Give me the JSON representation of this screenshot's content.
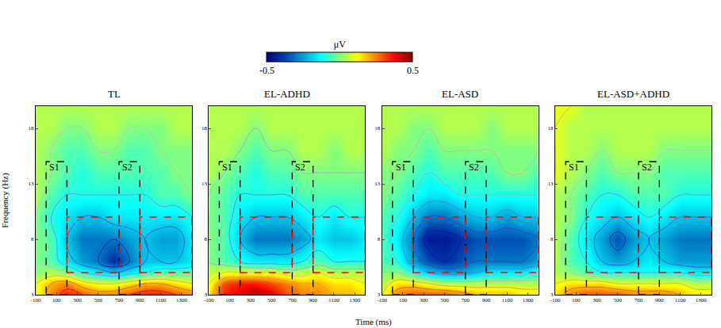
{
  "chart_data": {
    "type": "heatmap",
    "xlabel": "Time (ms)",
    "ylabel": "Frequency (Hz)",
    "xlim": [
      -100,
      1400
    ],
    "ylim": [
      3,
      20
    ],
    "xticks": [
      -100,
      100,
      300,
      500,
      700,
      900,
      1100,
      1300
    ],
    "yticks": [
      3,
      8,
      13,
      18
    ],
    "grid": false,
    "colorbar": {
      "title": "μV",
      "range": [
        -0.5,
        0.5
      ],
      "ticks": [
        -0.5,
        0.5
      ]
    },
    "x": [
      -100,
      50,
      200,
      350,
      500,
      650,
      800,
      950,
      1100,
      1250,
      1400
    ],
    "y": [
      3,
      4,
      5,
      6,
      8,
      10,
      12,
      14,
      16,
      18,
      20
    ],
    "panels": [
      {
        "title": "TL",
        "z": [
          [
            0.1,
            0.25,
            0.35,
            0.3,
            0.25,
            0.25,
            0.3,
            0.35,
            0.35,
            0.3,
            0.25
          ],
          [
            0.1,
            0.2,
            0.25,
            0.15,
            0.1,
            0.1,
            0.15,
            0.2,
            0.2,
            0.15,
            0.1
          ],
          [
            0.0,
            0.05,
            0.0,
            -0.1,
            -0.15,
            -0.2,
            -0.15,
            -0.1,
            -0.05,
            -0.05,
            -0.05
          ],
          [
            0.0,
            -0.05,
            -0.15,
            -0.25,
            -0.3,
            -0.4,
            -0.3,
            -0.2,
            -0.2,
            -0.2,
            -0.15
          ],
          [
            0.0,
            -0.05,
            -0.2,
            -0.3,
            -0.3,
            -0.3,
            -0.25,
            -0.2,
            -0.25,
            -0.25,
            -0.15
          ],
          [
            0.0,
            -0.1,
            -0.15,
            -0.2,
            -0.2,
            -0.15,
            -0.15,
            -0.15,
            -0.15,
            -0.15,
            -0.1
          ],
          [
            0.05,
            -0.05,
            -0.1,
            -0.1,
            -0.1,
            -0.1,
            -0.1,
            -0.1,
            -0.05,
            -0.05,
            0.0
          ],
          [
            0.05,
            0.0,
            -0.05,
            -0.1,
            -0.05,
            -0.05,
            -0.05,
            -0.05,
            -0.05,
            0.0,
            0.0
          ],
          [
            0.05,
            0.0,
            -0.05,
            -0.05,
            0.0,
            0.0,
            -0.05,
            -0.05,
            0.0,
            0.0,
            0.0
          ],
          [
            0.05,
            0.05,
            0.0,
            0.0,
            0.05,
            0.05,
            0.0,
            0.0,
            0.0,
            0.05,
            0.05
          ],
          [
            0.05,
            0.05,
            0.05,
            0.05,
            0.05,
            0.05,
            0.05,
            0.05,
            0.05,
            0.05,
            0.05
          ]
        ],
        "windows": [
          {
            "label": "S1",
            "x": [
              0,
              200
            ],
            "y": [
              3,
              15
            ],
            "color": "black"
          },
          {
            "label": "S2",
            "x": [
              700,
              900
            ],
            "y": [
              3,
              15
            ],
            "color": "black"
          },
          {
            "x": [
              200,
              700
            ],
            "y": [
              5,
              10
            ],
            "color": "red"
          },
          {
            "x": [
              900,
              1400
            ],
            "y": [
              5,
              10
            ],
            "color": "red"
          }
        ]
      },
      {
        "title": "EL-ADHD",
        "z": [
          [
            0.15,
            0.35,
            0.4,
            0.45,
            0.4,
            0.3,
            0.25,
            0.25,
            0.2,
            0.2,
            0.15
          ],
          [
            0.1,
            0.3,
            0.35,
            0.35,
            0.3,
            0.25,
            0.2,
            0.2,
            0.15,
            0.15,
            0.1
          ],
          [
            0.05,
            0.1,
            0.1,
            0.1,
            0.1,
            0.05,
            0.05,
            0.1,
            0.05,
            0.05,
            0.05
          ],
          [
            0.0,
            -0.05,
            -0.1,
            -0.15,
            -0.15,
            -0.15,
            -0.1,
            -0.05,
            -0.1,
            -0.1,
            -0.1
          ],
          [
            0.0,
            -0.05,
            -0.2,
            -0.3,
            -0.3,
            -0.3,
            -0.25,
            -0.15,
            -0.2,
            -0.2,
            -0.15
          ],
          [
            0.0,
            -0.05,
            -0.15,
            -0.2,
            -0.2,
            -0.2,
            -0.15,
            -0.1,
            -0.15,
            -0.1,
            -0.1
          ],
          [
            0.0,
            -0.05,
            -0.1,
            -0.1,
            -0.1,
            -0.1,
            -0.05,
            -0.05,
            -0.05,
            -0.05,
            -0.05
          ],
          [
            0.05,
            0.0,
            -0.05,
            -0.1,
            -0.05,
            -0.05,
            0.0,
            0.0,
            0.0,
            0.0,
            0.0
          ],
          [
            0.05,
            0.05,
            0.0,
            -0.05,
            0.0,
            0.0,
            0.05,
            0.05,
            0.0,
            0.05,
            0.05
          ],
          [
            0.05,
            0.05,
            0.05,
            0.0,
            0.05,
            0.05,
            0.05,
            0.05,
            0.05,
            0.05,
            0.05
          ],
          [
            0.05,
            0.05,
            0.05,
            0.05,
            0.05,
            0.05,
            0.05,
            0.05,
            0.05,
            0.05,
            0.05
          ]
        ],
        "windows": [
          {
            "label": "S1",
            "x": [
              0,
              200
            ],
            "y": [
              3,
              15
            ],
            "color": "black"
          },
          {
            "label": "S2",
            "x": [
              700,
              900
            ],
            "y": [
              3,
              15
            ],
            "color": "black"
          },
          {
            "x": [
              200,
              700
            ],
            "y": [
              5,
              10
            ],
            "color": "red"
          },
          {
            "x": [
              900,
              1400
            ],
            "y": [
              5,
              10
            ],
            "color": "red"
          }
        ]
      },
      {
        "title": "EL-ASD",
        "z": [
          [
            0.1,
            0.25,
            0.3,
            0.3,
            0.3,
            0.25,
            0.2,
            0.2,
            0.2,
            0.15,
            0.15
          ],
          [
            0.05,
            0.15,
            0.15,
            0.1,
            0.05,
            0.05,
            0.05,
            0.05,
            0.05,
            0.05,
            0.05
          ],
          [
            0.0,
            0.0,
            -0.1,
            -0.2,
            -0.25,
            -0.25,
            -0.2,
            -0.15,
            -0.15,
            -0.15,
            -0.1
          ],
          [
            -0.05,
            -0.1,
            -0.25,
            -0.35,
            -0.4,
            -0.35,
            -0.3,
            -0.3,
            -0.3,
            -0.3,
            -0.25
          ],
          [
            -0.05,
            -0.15,
            -0.3,
            -0.45,
            -0.45,
            -0.4,
            -0.35,
            -0.35,
            -0.35,
            -0.35,
            -0.3
          ],
          [
            -0.05,
            -0.1,
            -0.2,
            -0.3,
            -0.3,
            -0.25,
            -0.2,
            -0.2,
            -0.25,
            -0.2,
            -0.2
          ],
          [
            0.0,
            -0.05,
            -0.1,
            -0.15,
            -0.15,
            -0.1,
            -0.1,
            -0.1,
            -0.1,
            -0.1,
            -0.1
          ],
          [
            0.0,
            0.0,
            -0.05,
            -0.1,
            -0.05,
            -0.05,
            -0.05,
            -0.05,
            0.0,
            0.0,
            -0.05
          ],
          [
            0.05,
            0.0,
            0.0,
            -0.05,
            0.0,
            0.0,
            0.0,
            0.0,
            0.0,
            0.0,
            0.0
          ],
          [
            0.05,
            0.05,
            0.0,
            0.0,
            0.05,
            0.05,
            0.05,
            0.0,
            0.05,
            0.05,
            0.05
          ],
          [
            0.05,
            0.05,
            0.05,
            0.05,
            0.05,
            0.05,
            0.05,
            0.05,
            0.05,
            0.05,
            0.05
          ]
        ],
        "windows": [
          {
            "label": "S1",
            "x": [
              0,
              200
            ],
            "y": [
              3,
              15
            ],
            "color": "black"
          },
          {
            "label": "S2",
            "x": [
              700,
              900
            ],
            "y": [
              3,
              15
            ],
            "color": "black"
          },
          {
            "x": [
              200,
              700
            ],
            "y": [
              5,
              10
            ],
            "color": "red"
          },
          {
            "x": [
              900,
              1400
            ],
            "y": [
              5,
              10
            ],
            "color": "red"
          }
        ]
      },
      {
        "title": "EL-ASD+ADHD",
        "z": [
          [
            0.15,
            0.25,
            0.3,
            0.3,
            0.3,
            0.25,
            0.25,
            0.25,
            0.2,
            0.15,
            0.15
          ],
          [
            0.1,
            0.15,
            0.15,
            0.15,
            0.1,
            0.1,
            0.1,
            0.1,
            0.1,
            0.05,
            0.05
          ],
          [
            0.05,
            0.0,
            -0.05,
            -0.1,
            -0.1,
            -0.1,
            -0.1,
            -0.1,
            -0.1,
            -0.15,
            -0.15
          ],
          [
            0.05,
            -0.05,
            -0.1,
            -0.2,
            -0.25,
            -0.2,
            -0.15,
            -0.2,
            -0.25,
            -0.25,
            -0.25
          ],
          [
            0.05,
            -0.05,
            -0.15,
            -0.25,
            -0.35,
            -0.25,
            -0.2,
            -0.25,
            -0.3,
            -0.3,
            -0.3
          ],
          [
            0.05,
            0.0,
            -0.1,
            -0.15,
            -0.2,
            -0.15,
            -0.1,
            -0.15,
            -0.2,
            -0.2,
            -0.2
          ],
          [
            0.05,
            0.0,
            -0.05,
            -0.1,
            -0.1,
            -0.05,
            -0.05,
            -0.05,
            -0.1,
            -0.1,
            -0.1
          ],
          [
            0.1,
            0.05,
            0.0,
            -0.05,
            0.0,
            0.0,
            0.0,
            -0.05,
            -0.05,
            -0.05,
            -0.05
          ],
          [
            0.1,
            0.05,
            0.05,
            0.0,
            0.05,
            0.05,
            0.05,
            0.0,
            0.0,
            0.0,
            0.0
          ],
          [
            0.1,
            0.05,
            0.05,
            0.05,
            0.05,
            0.05,
            0.05,
            0.05,
            0.05,
            0.05,
            0.05
          ],
          [
            0.1,
            0.1,
            0.05,
            0.05,
            0.05,
            0.05,
            0.05,
            0.05,
            0.05,
            0.05,
            0.05
          ]
        ],
        "windows": [
          {
            "label": "S1",
            "x": [
              0,
              200
            ],
            "y": [
              3,
              15
            ],
            "color": "black"
          },
          {
            "label": "S2",
            "x": [
              700,
              900
            ],
            "y": [
              3,
              15
            ],
            "color": "black"
          },
          {
            "x": [
              200,
              700
            ],
            "y": [
              5,
              10
            ],
            "color": "red"
          },
          {
            "x": [
              900,
              1400
            ],
            "y": [
              5,
              10
            ],
            "color": "red"
          }
        ]
      }
    ]
  }
}
